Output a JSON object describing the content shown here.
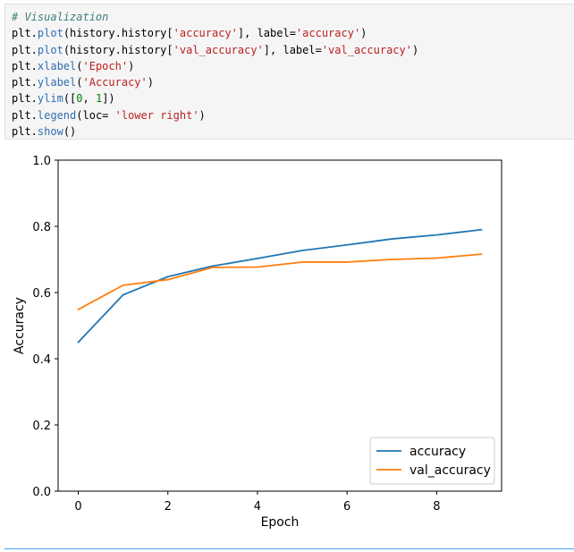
{
  "code_cell": {
    "lines": [
      [
        {
          "t": "comment",
          "v": "# Visualization"
        }
      ],
      [
        {
          "t": "plain",
          "v": "plt."
        },
        {
          "t": "func",
          "v": "plot"
        },
        {
          "t": "plain",
          "v": "(history.history["
        },
        {
          "t": "str",
          "v": "'accuracy'"
        },
        {
          "t": "plain",
          "v": "], label="
        },
        {
          "t": "str",
          "v": "'accuracy'"
        },
        {
          "t": "plain",
          "v": ")"
        }
      ],
      [
        {
          "t": "plain",
          "v": "plt."
        },
        {
          "t": "func",
          "v": "plot"
        },
        {
          "t": "plain",
          "v": "(history.history["
        },
        {
          "t": "str",
          "v": "'val_accuracy'"
        },
        {
          "t": "plain",
          "v": "], label="
        },
        {
          "t": "str",
          "v": "'val_accuracy'"
        },
        {
          "t": "plain",
          "v": ")"
        }
      ],
      [
        {
          "t": "plain",
          "v": "plt."
        },
        {
          "t": "func",
          "v": "xlabel"
        },
        {
          "t": "plain",
          "v": "("
        },
        {
          "t": "str",
          "v": "'Epoch'"
        },
        {
          "t": "plain",
          "v": ")"
        }
      ],
      [
        {
          "t": "plain",
          "v": "plt."
        },
        {
          "t": "func",
          "v": "ylabel"
        },
        {
          "t": "plain",
          "v": "("
        },
        {
          "t": "str",
          "v": "'Accuracy'"
        },
        {
          "t": "plain",
          "v": ")"
        }
      ],
      [
        {
          "t": "plain",
          "v": "plt."
        },
        {
          "t": "func",
          "v": "ylim"
        },
        {
          "t": "plain",
          "v": "(["
        },
        {
          "t": "num",
          "v": "0"
        },
        {
          "t": "plain",
          "v": ", "
        },
        {
          "t": "num",
          "v": "1"
        },
        {
          "t": "plain",
          "v": "])"
        }
      ],
      [
        {
          "t": "plain",
          "v": "plt."
        },
        {
          "t": "func",
          "v": "legend"
        },
        {
          "t": "plain",
          "v": "(loc= "
        },
        {
          "t": "str",
          "v": "'lower right'"
        },
        {
          "t": "plain",
          "v": ")"
        }
      ],
      [
        {
          "t": "plain",
          "v": "plt."
        },
        {
          "t": "func",
          "v": "show"
        },
        {
          "t": "plain",
          "v": "()"
        }
      ]
    ]
  },
  "chart_data": {
    "type": "line",
    "x": [
      0,
      1,
      2,
      3,
      4,
      5,
      6,
      7,
      8,
      9
    ],
    "series": [
      {
        "name": "accuracy",
        "color": "#1f77b4",
        "values": [
          0.45,
          0.593,
          0.648,
          0.68,
          0.703,
          0.727,
          0.744,
          0.762,
          0.774,
          0.79
        ]
      },
      {
        "name": "val_accuracy",
        "color": "#ff7f0e",
        "values": [
          0.549,
          0.622,
          0.639,
          0.676,
          0.677,
          0.692,
          0.692,
          0.7,
          0.704,
          0.716
        ]
      }
    ],
    "title": "",
    "xlabel": "Epoch",
    "ylabel": "Accuracy",
    "xlim": [
      -0.45,
      9.45
    ],
    "ylim": [
      0,
      1
    ],
    "xticks": [
      0,
      2,
      4,
      6,
      8
    ],
    "xtick_labels": [
      "0",
      "2",
      "4",
      "6",
      "8"
    ],
    "yticks": [
      0,
      0.2,
      0.4,
      0.6,
      0.8,
      1.0
    ],
    "ytick_labels": [
      "0.0",
      "0.2",
      "0.4",
      "0.6",
      "0.8",
      "1.0"
    ],
    "grid": false,
    "legend": "lower right"
  }
}
